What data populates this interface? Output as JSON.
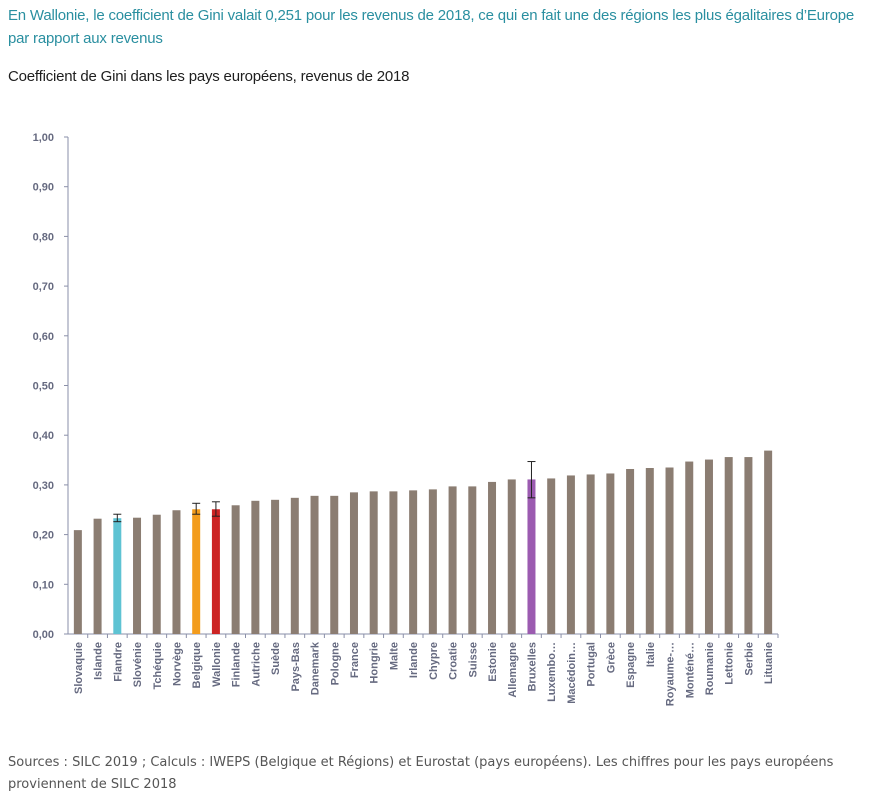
{
  "headline": "En Wallonie, le coefficient de Gini valait 0,251 pour les revenus de 2018, ce qui en fait une des régions les plus égalitaires d’Europe par rapport aux revenus",
  "subtitle": "Coefficient de Gini dans les pays européens, revenus de 2018",
  "source": "Sources : SILC 2019 ; Calculs : IWEPS (Belgique et Régions) et Eurostat (pays européens). Les chiffres pour les pays européens proviennent de SILC 2018",
  "chart_data": {
    "type": "bar",
    "title": "",
    "xlabel": "",
    "ylabel": "",
    "ylim": [
      0,
      1
    ],
    "yticks": [
      "0,00",
      "0,10",
      "0,20",
      "0,30",
      "0,40",
      "0,50",
      "0,60",
      "0,70",
      "0,80",
      "0,90",
      "1,00"
    ],
    "grid": false,
    "categories": [
      "Slovaquie",
      "Islande",
      "Flandre",
      "Slovénie",
      "Tchéquie",
      "Norvège",
      "Belgique",
      "Wallonie",
      "Finlande",
      "Autriche",
      "Suède",
      "Pays-Bas",
      "Danemark",
      "Pologne",
      "France",
      "Hongrie",
      "Malte",
      "Irlande",
      "Chypre",
      "Croatie",
      "Suisse",
      "Estonie",
      "Allemagne",
      "Bruxelles",
      "Luxembo…",
      "Macédoin…",
      "Portugal",
      "Grèce",
      "Espagne",
      "Italie",
      "Royaume-…",
      "Monténé…",
      "Roumanie",
      "Lettonie",
      "Serbie",
      "Lituanie"
    ],
    "values": [
      0.209,
      0.232,
      0.233,
      0.234,
      0.24,
      0.249,
      0.251,
      0.251,
      0.259,
      0.268,
      0.27,
      0.274,
      0.278,
      0.278,
      0.285,
      0.287,
      0.287,
      0.289,
      0.291,
      0.297,
      0.297,
      0.306,
      0.311,
      0.311,
      0.313,
      0.319,
      0.321,
      0.323,
      0.332,
      0.334,
      0.335,
      0.347,
      0.351,
      0.356,
      0.356,
      0.369
    ],
    "error_bars": {
      "Flandre": [
        0.226,
        0.241
      ],
      "Belgique": [
        0.241,
        0.263
      ],
      "Wallonie": [
        0.237,
        0.266
      ],
      "Bruxelles": [
        0.274,
        0.347
      ]
    },
    "colors": {
      "default": "#8b7d72",
      "Flandre": "#5ec3d3",
      "Belgique": "#f39c1c",
      "Wallonie": "#cc2424",
      "Bruxelles": "#9b5bb0"
    }
  }
}
